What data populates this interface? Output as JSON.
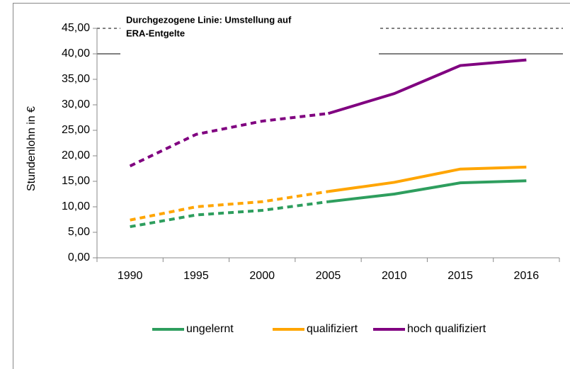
{
  "chart_data": {
    "type": "line",
    "annotation": [
      "Durchgezogene Linie: Umstellung auf",
      "ERA-Entgelte"
    ],
    "y_label": "Stundenlohn in €",
    "categories": [
      "1990",
      "1995",
      "2000",
      "2005",
      "2010",
      "2015",
      "2016"
    ],
    "dashed_until": "2005",
    "series": [
      {
        "name": "ungelernt",
        "color": "#2e9e5e",
        "values": [
          6.1,
          8.4,
          9.3,
          11.0,
          12.5,
          14.7,
          15.1
        ]
      },
      {
        "name": "qualifiziert",
        "color": "#ffa500",
        "values": [
          7.4,
          10.0,
          11.0,
          13.0,
          14.8,
          17.4,
          17.8
        ]
      },
      {
        "name": "hoch qualifiziert",
        "color": "#800080",
        "values": [
          18.0,
          24.2,
          26.8,
          28.3,
          32.2,
          37.7,
          38.8
        ]
      }
    ],
    "ylim": [
      0,
      45
    ],
    "yticks": [
      {
        "value": 0,
        "label": "0,00"
      },
      {
        "value": 5,
        "label": "5,00"
      },
      {
        "value": 10,
        "label": "10,00"
      },
      {
        "value": 15,
        "label": "15,00"
      },
      {
        "value": 20,
        "label": "20,00"
      },
      {
        "value": 25,
        "label": "25,00"
      },
      {
        "value": 30,
        "label": "30,00"
      },
      {
        "value": 35,
        "label": "35,00"
      },
      {
        "value": 40,
        "label": "40,00"
      },
      {
        "value": 45,
        "label": "45,00"
      }
    ],
    "legend": "bottom"
  }
}
